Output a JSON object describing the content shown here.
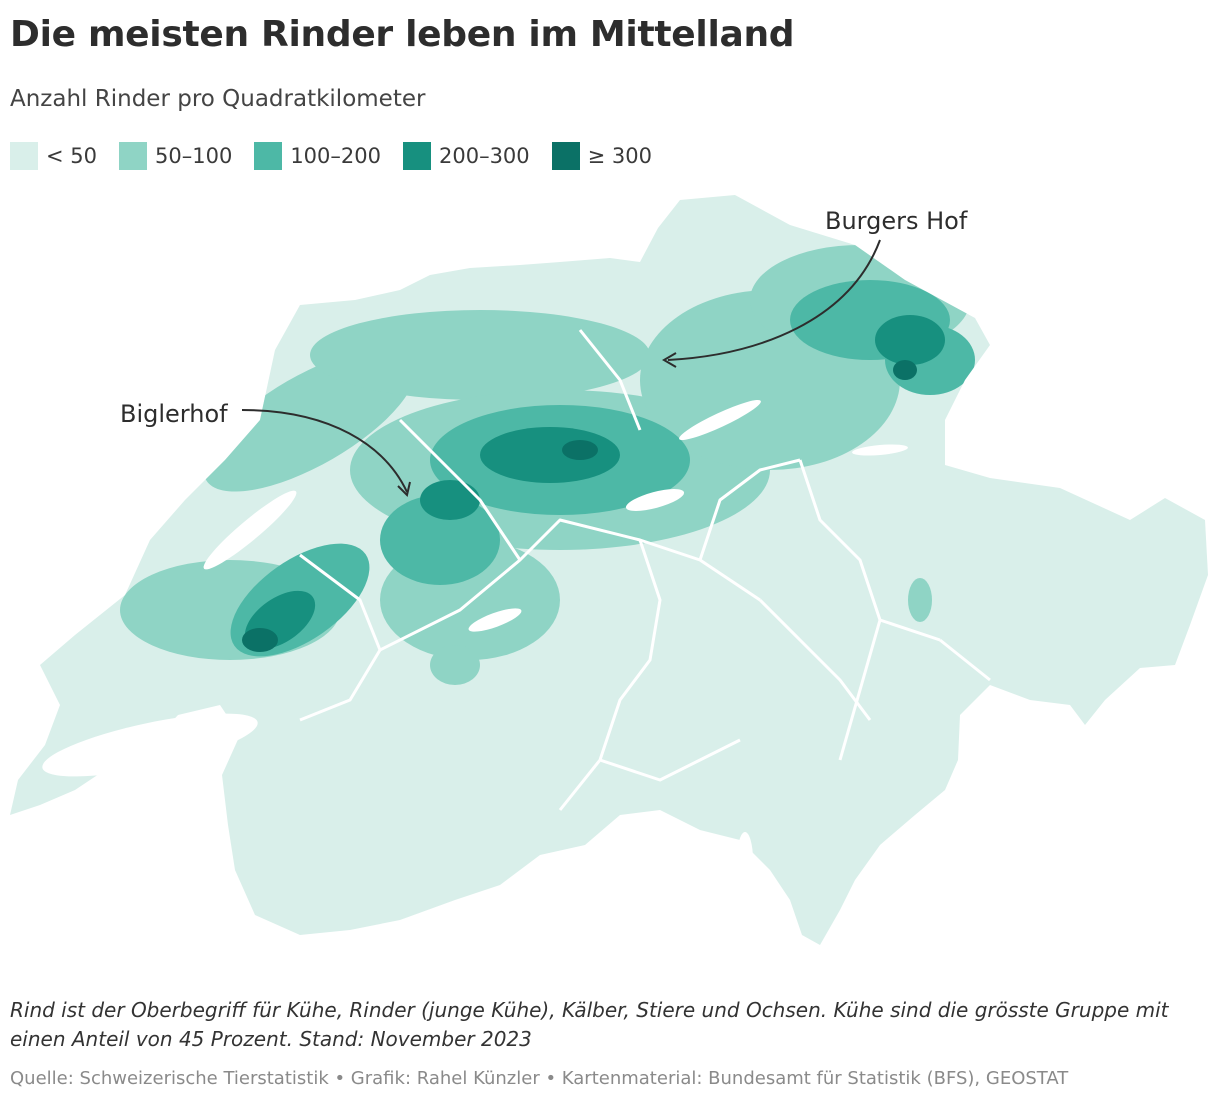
{
  "title": "Die meisten Rinder leben im Mittelland",
  "subtitle": "Anzahl Rinder pro Quadratkilometer",
  "legend": [
    {
      "label": "< 50",
      "color": "#d9efea"
    },
    {
      "label": "50–100",
      "color": "#8fd4c5"
    },
    {
      "label": "100–200",
      "color": "#4db8a6"
    },
    {
      "label": "200–300",
      "color": "#17907f"
    },
    {
      "label": "≥ 300",
      "color": "#0b7166"
    }
  ],
  "annotations": {
    "burgers_hof": "Burgers Hof",
    "biglerhof": "Biglerhof"
  },
  "note": "Rind ist der Oberbegriff für Kühe, Rinder (junge Kühe), Kälber, Stiere und Ochsen. Kühe sind die grösste Gruppe mit einen Anteil von 45 Prozent. Stand: November 2023",
  "source": "Quelle: Schweizerische Tierstatistik • Grafik: Rahel Künzler • Kartenmaterial: Bundesamt für Statistik (BFS), GEOSTAT"
}
